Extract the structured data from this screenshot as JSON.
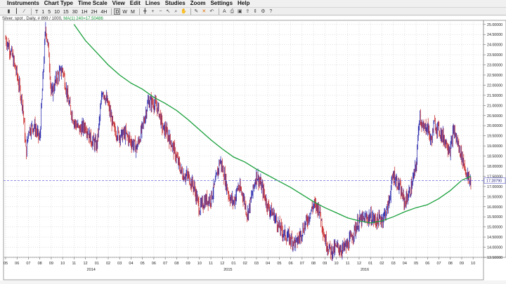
{
  "menubar": {
    "items": [
      "Instruments",
      "Chart Type",
      "Time Scale",
      "View",
      "Edit",
      "Lines",
      "Studies",
      "Zoom",
      "Settings",
      "Help"
    ]
  },
  "toolbar": {
    "left_buttons": [
      "T",
      "1",
      "5",
      "10",
      "15",
      "30",
      "1H",
      "2H",
      "4H"
    ],
    "period_buttons": [
      "D",
      "W",
      "M"
    ],
    "active": "D",
    "icons": [
      "bar-chart-icon",
      "candle-chart-icon",
      "line-chart-icon",
      "crosshair-icon",
      "zoom-in-icon",
      "zoom-out-icon",
      "cursor-icon",
      "magnifier-icon",
      "hand-icon",
      "pencil-icon",
      "delete-icon",
      "undo-icon",
      "text-icon",
      "print-icon",
      "save-icon",
      "export-icon",
      "scale-icon",
      "settings-icon",
      "help-icon"
    ]
  },
  "chart_title": {
    "instrument": "Silver, spot , Daily, # 899 / 1000,",
    "ma_label": "MA(1) 240=17.50486"
  },
  "colors": {
    "up_bar": "#1a1aa8",
    "down_bar": "#c82020",
    "ma_line": "#1aa03c",
    "price_line": "#8080e0",
    "price_tag_bg": "#ffffff",
    "price_tag_border": "#6060cc"
  },
  "chart_data": {
    "type": "bar",
    "title": "Silver, spot , Daily, # 899 / 1000,",
    "xlabel": "",
    "ylabel": "",
    "ylim": [
      13.5,
      25.2
    ],
    "price_axis_labels": [
      "25.00000",
      "24.50000",
      "24.00000",
      "23.50000",
      "23.00000",
      "22.50000",
      "22.00000",
      "21.50000",
      "21.00000",
      "20.50000",
      "20.00000",
      "19.50000",
      "19.00000",
      "18.50000",
      "18.00000",
      "17.50000",
      "17.00000",
      "16.50000",
      "16.00000",
      "15.50000",
      "15.00000",
      "14.50000",
      "14.00000",
      "13.50000"
    ],
    "price_tick_values": [
      25.0,
      24.5,
      24.0,
      23.5,
      23.0,
      22.5,
      22.0,
      21.5,
      21.0,
      20.5,
      20.0,
      19.5,
      19.0,
      18.5,
      18.0,
      17.5,
      17.0,
      16.5,
      16.0,
      15.5,
      15.0,
      14.5,
      14.0,
      13.5
    ],
    "last_price": 17.2879,
    "last_price_label": "17.28790",
    "month_labels": [
      "05",
      "06",
      "07",
      "08",
      "09",
      "10",
      "11",
      "12",
      "01",
      "02",
      "03",
      "04",
      "05",
      "06",
      "07",
      "08",
      "09",
      "10",
      "11",
      "12",
      "01",
      "02",
      "03",
      "04",
      "05",
      "06",
      "07",
      "08",
      "09",
      "10",
      "11",
      "12",
      "01",
      "02",
      "03",
      "04",
      "05",
      "06",
      "07",
      "08",
      "09",
      "10"
    ],
    "year_labels": [
      {
        "text": "2014",
        "after_month_index": 8
      },
      {
        "text": "2015",
        "after_month_index": 20
      },
      {
        "text": "2016",
        "after_month_index": 32
      }
    ],
    "price_path": {
      "months": [
        0,
        0.5,
        1,
        1.5,
        1.8,
        2,
        2.5,
        3,
        3.5,
        3.8,
        4,
        4.5,
        5,
        5.5,
        6,
        6.5,
        7,
        7.5,
        8,
        8.5,
        9,
        9.5,
        10,
        10.5,
        11,
        11.5,
        12,
        12.5,
        13,
        13.4,
        13.8,
        14,
        14.5,
        15,
        15.5,
        16,
        16.5,
        17,
        17.5,
        18,
        18.4,
        18.8,
        19.2,
        19.6,
        20,
        20.4,
        20.8,
        21.2,
        21.5,
        22,
        22.5,
        23,
        23.5,
        24,
        24.5,
        25,
        25.5,
        26,
        26.5,
        27,
        27.5,
        28,
        28.3,
        28.6,
        29,
        29.5,
        30,
        30.5,
        31,
        31.5,
        32,
        32.5,
        33,
        33.5,
        34,
        34.5,
        35,
        35.5,
        36,
        36.3,
        36.6,
        37,
        37.3,
        37.6,
        38,
        38.5,
        39,
        39.3,
        39.6,
        40,
        40.3,
        40.6,
        40.8
      ],
      "closes": [
        24.3,
        23.6,
        22.5,
        21.0,
        18.6,
        19.8,
        20.0,
        19.3,
        24.9,
        23.5,
        21.5,
        22.4,
        22.8,
        21.2,
        20.2,
        19.8,
        20.0,
        19.3,
        19.0,
        21.8,
        21.0,
        19.8,
        19.5,
        19.6,
        19.2,
        18.9,
        19.9,
        21.2,
        21.1,
        20.8,
        19.8,
        19.8,
        19.2,
        18.4,
        17.6,
        17.5,
        17.0,
        15.9,
        16.3,
        16.4,
        17.2,
        18.3,
        17.5,
        16.5,
        16.2,
        17.0,
        16.6,
        15.6,
        16.3,
        17.6,
        16.9,
        16.0,
        15.6,
        15.0,
        14.6,
        14.4,
        14.2,
        14.8,
        15.4,
        16.1,
        15.9,
        14.4,
        14.0,
        13.8,
        14.0,
        13.9,
        14.1,
        14.7,
        15.3,
        15.4,
        15.5,
        15.3,
        15.4,
        15.9,
        17.6,
        17.0,
        16.2,
        16.8,
        18.0,
        20.6,
        19.8,
        20.0,
        19.2,
        20.1,
        19.8,
        19.3,
        18.8,
        19.8,
        19.2,
        18.5,
        17.9,
        17.3,
        17.25
      ]
    },
    "ma_240": {
      "months": [
        6.0,
        7,
        8,
        9,
        10,
        11,
        12,
        13,
        14,
        15,
        16,
        17,
        18,
        19,
        20,
        21,
        22,
        23,
        24,
        25,
        26,
        27,
        28,
        29,
        30,
        31,
        32,
        33,
        34,
        35,
        36,
        37,
        38,
        39,
        40,
        40.8
      ],
      "values": [
        25.0,
        24.2,
        23.6,
        23.0,
        22.5,
        22.1,
        21.8,
        21.4,
        21.1,
        20.75,
        20.3,
        19.8,
        19.3,
        18.85,
        18.45,
        18.2,
        17.85,
        17.55,
        17.25,
        16.95,
        16.6,
        16.25,
        15.95,
        15.7,
        15.45,
        15.3,
        15.2,
        15.3,
        15.5,
        15.75,
        15.95,
        16.1,
        16.4,
        16.8,
        17.3,
        17.5
      ]
    }
  }
}
